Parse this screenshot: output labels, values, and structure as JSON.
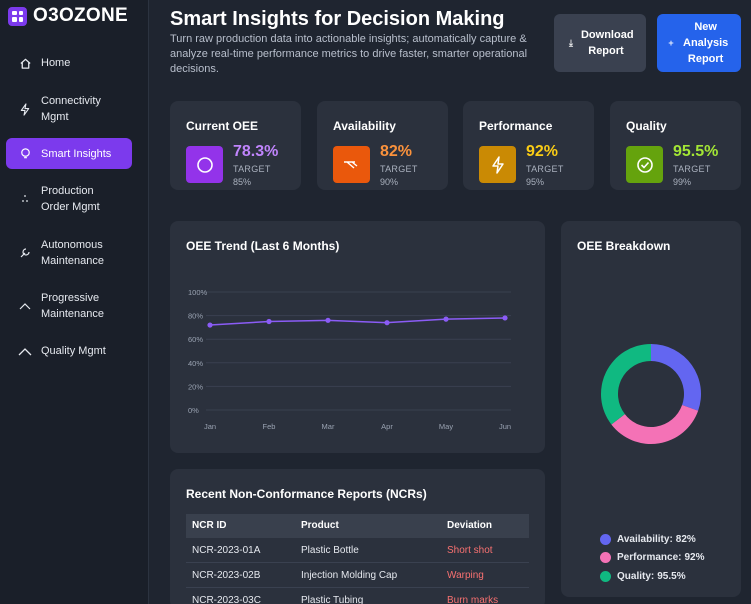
{
  "brand": {
    "name": "O3OZONE"
  },
  "sidebar": {
    "items": [
      {
        "label": "Home",
        "icon": "home-icon"
      },
      {
        "label": "Connectivity Mgmt",
        "icon": "bolt-icon"
      },
      {
        "label": "Smart Insights",
        "icon": "bulb-icon",
        "active": true
      },
      {
        "label": "Production Order Mgmt",
        "icon": "dots-icon"
      },
      {
        "label": "Autonomous Maintenance",
        "icon": "wrench-icon"
      },
      {
        "label": "Progressive Maintenance",
        "icon": "chevron-up-icon"
      },
      {
        "label": "Quality Mgmt",
        "icon": "chevron-up-icon"
      }
    ]
  },
  "header": {
    "title": "Smart Insights for Decision Making",
    "subtitle": "Turn raw production data into actionable insights; automatically capture & analyze real-time performance metrics to drive faster, smarter operational decisions.",
    "download_label": "Download Report",
    "new_label": "New Analysis Report"
  },
  "kpis": [
    {
      "title": "Current OEE",
      "value": "78.3%",
      "target_label": "TARGET",
      "target": "85%",
      "color": "#9333ea",
      "value_color": "#c084fc",
      "icon": "circle-icon"
    },
    {
      "title": "Availability",
      "value": "82%",
      "target_label": "TARGET",
      "target": "90%",
      "color": "#ea580c",
      "value_color": "#fb923c",
      "icon": "trend-icon"
    },
    {
      "title": "Performance",
      "value": "92%",
      "target_label": "TARGET",
      "target": "95%",
      "color": "#ca8a04",
      "value_color": "#facc15",
      "icon": "lightning-icon"
    },
    {
      "title": "Quality",
      "value": "95.5%",
      "target_label": "TARGET",
      "target": "99%",
      "color": "#65a30d",
      "value_color": "#a3e635",
      "icon": "check-circle-icon"
    }
  ],
  "trend": {
    "title": "OEE Trend (Last 6 Months)"
  },
  "breakdown": {
    "title": "OEE Breakdown"
  },
  "chart_data": [
    {
      "type": "line",
      "title": "OEE Trend (Last 6 Months)",
      "categories": [
        "Jan",
        "Feb",
        "Mar",
        "Apr",
        "May",
        "Jun"
      ],
      "values": [
        72,
        75,
        76,
        74,
        77,
        78
      ],
      "yticks": [
        "0%",
        "20%",
        "40%",
        "60%",
        "80%",
        "100%"
      ],
      "ylim": [
        0,
        100
      ],
      "color": "#8b5cf6",
      "grid": true
    },
    {
      "type": "pie",
      "title": "OEE Breakdown",
      "labels": [
        "Availability",
        "Performance",
        "Quality"
      ],
      "display": [
        "82%",
        "92%",
        "95.5%"
      ],
      "values": [
        82,
        92,
        95.5
      ],
      "colors": [
        "#6366f1",
        "#f472b6",
        "#10b981"
      ],
      "legend": "bottom"
    }
  ],
  "ncr": {
    "title": "Recent Non-Conformance Reports (NCRs)",
    "columns": [
      "NCR ID",
      "Product",
      "Deviation"
    ],
    "rows": [
      {
        "id": "NCR-2023-01A",
        "product": "Plastic Bottle",
        "deviation": "Short shot"
      },
      {
        "id": "NCR-2023-02B",
        "product": "Injection Molding Cap",
        "deviation": "Warping"
      },
      {
        "id": "NCR-2023-03C",
        "product": "Plastic Tubing",
        "deviation": "Burn marks"
      }
    ]
  }
}
